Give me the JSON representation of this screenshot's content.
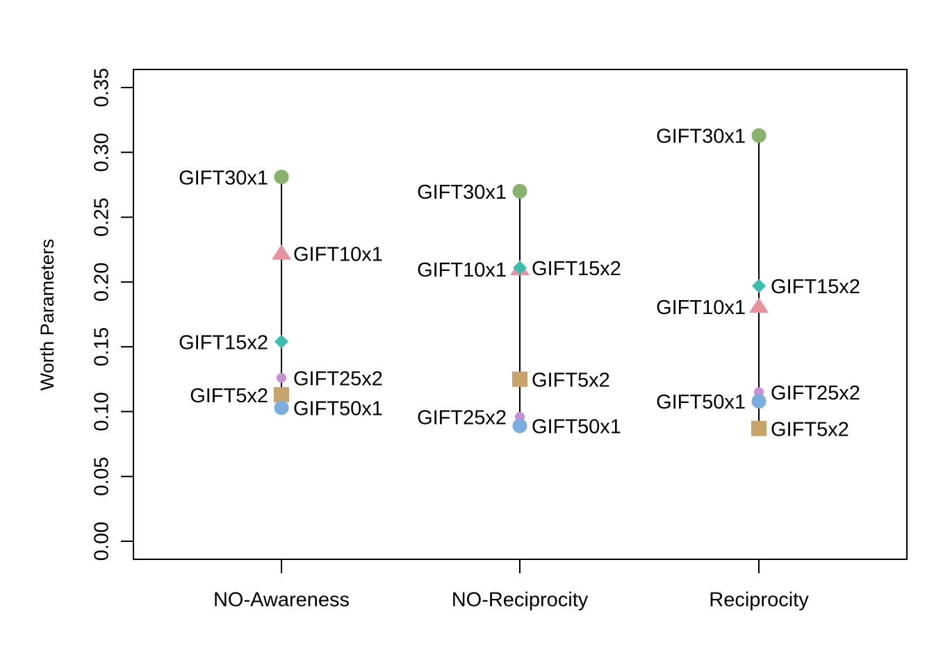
{
  "chart_data": {
    "type": "scatter",
    "title": "",
    "xlabel": "",
    "ylabel": "Worth Parameters",
    "ylim": [
      0.0,
      0.35
    ],
    "ytick_values": [
      0.0,
      0.05,
      0.1,
      0.15,
      0.2,
      0.25,
      0.3,
      0.35
    ],
    "ytick_labels": [
      "0.00",
      "0.05",
      "0.10",
      "0.15",
      "0.20",
      "0.25",
      "0.30",
      "0.35"
    ],
    "categories": [
      "NO-Awareness",
      "NO-Reciprocity",
      "Reciprocity"
    ],
    "grid": false,
    "legend": "none",
    "series": [
      {
        "name": "GIFT30x1",
        "marker": "circle",
        "color": "#88b36c",
        "values": [
          0.281,
          0.27,
          0.313
        ],
        "label_side": [
          "left",
          "left",
          "left"
        ]
      },
      {
        "name": "GIFT10x1",
        "marker": "triangle",
        "color": "#e8919f",
        "values": [
          0.222,
          0.21,
          0.181
        ],
        "label_side": [
          "right",
          "left",
          "left"
        ]
      },
      {
        "name": "GIFT15x2",
        "marker": "diamond",
        "color": "#3bbfad",
        "values": [
          0.154,
          0.211,
          0.197
        ],
        "label_side": [
          "left",
          "right",
          "right"
        ]
      },
      {
        "name": "GIFT25x2",
        "marker": "small-circle",
        "color": "#c98fd8",
        "values": [
          0.126,
          0.096,
          0.115
        ],
        "label_side": [
          "right",
          "left",
          "right"
        ]
      },
      {
        "name": "GIFT5x2",
        "marker": "square",
        "color": "#c8a46a",
        "values": [
          0.113,
          0.125,
          0.087
        ],
        "label_side": [
          "left",
          "right",
          "right"
        ]
      },
      {
        "name": "GIFT50x1",
        "marker": "circle",
        "color": "#7aaee0",
        "values": [
          0.103,
          0.089,
          0.108
        ],
        "label_side": [
          "right",
          "right",
          "left"
        ]
      }
    ]
  }
}
